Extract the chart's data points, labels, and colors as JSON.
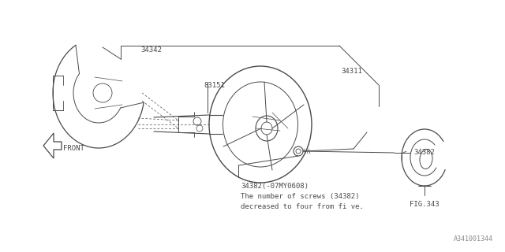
{
  "bg_color": "#ffffff",
  "line_color": "#4a4a4a",
  "fig_width": 6.4,
  "fig_height": 3.2,
  "watermark": "A341001344",
  "label_texts": {
    "34342": "34342",
    "83151": "83151",
    "34311": "34311",
    "34382_side": "34382",
    "34382_note1": "34382(-07MY0608)",
    "34382_note2": "The number of screws (34382)",
    "34382_note3": "decreased to four from fi ve.",
    "FIG343": "FIG.343",
    "FRONT": "FRONT"
  }
}
